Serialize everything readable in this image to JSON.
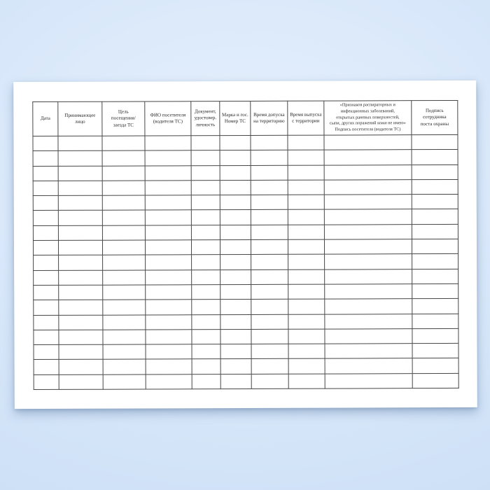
{
  "colors": {
    "background_center": "#e8f1fc",
    "background_edge": "#c9ddf5",
    "paper": "#ffffff",
    "table_border": "#474747",
    "text": "#262626"
  },
  "table": {
    "column_count": 10,
    "empty_row_count": 17,
    "columns": [
      "Дата",
      "Принимающее\nлицо",
      "Цель\nпосещения/\nзаезда ТС",
      "ФИО посетителя\n(водителя ТС)",
      "Документ,\nудостовер.\nличность",
      "Марка и гос.\nНомер ТС",
      "Время допуска\nна территорию",
      "Время выпуска\nс территории",
      "«Признаков распираторных и\nинфекционных заболеваний,\nоткрытых раневых поверхностей,\nсыпи, других поражений кожи не имею»\nПодпись посетителя (водителя ТС)",
      "Подпись\nсотрудника\nпоста охраны"
    ]
  }
}
